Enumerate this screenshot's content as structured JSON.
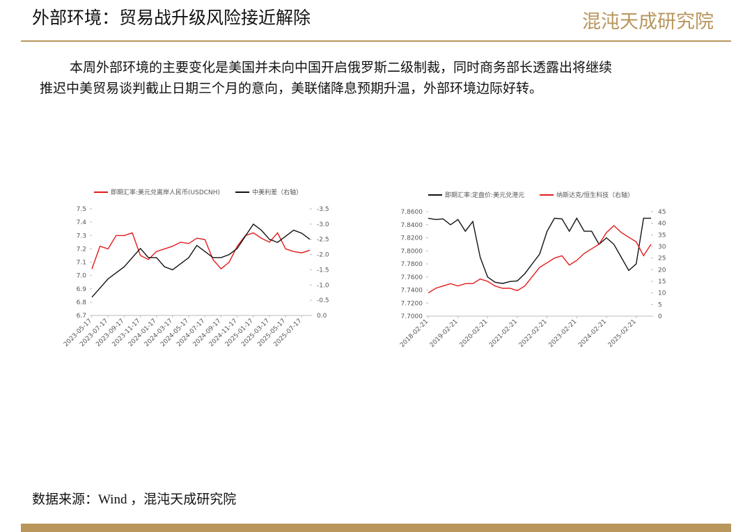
{
  "header": {
    "title": "外部环境：贸易战升级风险接近解除",
    "logo": "混沌天成研究院"
  },
  "paragraph": [
    "本周外部环境的主要变化是美国并未向中国开启俄罗斯二级制裁，同时商务部长透露出将继续",
    "推迟中美贸易谈判截止日期三个月的意向，美联储降息预期升温，外部环境边际好转。"
  ],
  "source": "数据来源：Wind ，混沌天成研究院",
  "chart_data": [
    {
      "type": "line",
      "categories": [
        "2023-05-17",
        null,
        "2023-07-17",
        null,
        "2023-09-17",
        null,
        "2023-11-17",
        null,
        "2024-01-17",
        null,
        "2024-03-17",
        null,
        "2024-05-17",
        null,
        "2024-07-17",
        null,
        "2024-09-17",
        null,
        "2024-11-17",
        null,
        "2025-01-17",
        null,
        "2025-03-17",
        null,
        "2025-05-17",
        null,
        "2025-07-17",
        null
      ],
      "series": [
        {
          "name": "即期汇率:美元兑离岸人民币(USDCNH)",
          "color": "#e31a1c",
          "values": [
            7.05,
            7.22,
            7.2,
            7.3,
            7.3,
            7.32,
            7.15,
            7.12,
            7.18,
            7.2,
            7.22,
            7.25,
            7.24,
            7.28,
            7.27,
            7.12,
            7.05,
            7.1,
            7.22,
            7.3,
            7.32,
            7.28,
            7.25,
            7.32,
            7.2,
            7.18,
            7.17,
            7.19
          ]
        },
        {
          "name": "中美利差（右轴）",
          "color": "#111111",
          "axis": "y2",
          "values": [
            -0.6,
            -0.9,
            -1.2,
            -1.4,
            -1.6,
            -1.9,
            -2.2,
            -1.9,
            -1.9,
            -1.6,
            -1.5,
            -1.7,
            -1.9,
            -2.3,
            -2.1,
            -1.9,
            -1.9,
            -2.0,
            -2.2,
            -2.6,
            -3.0,
            -2.8,
            -2.5,
            -2.4,
            -2.6,
            -2.8,
            -2.7,
            -2.5
          ]
        }
      ],
      "ylim": [
        6.7,
        7.5
      ],
      "yticks": [
        6.7,
        6.8,
        6.9,
        {
          "value": 7,
          "label": "7.0"
        },
        7.1,
        7.2,
        7.3,
        7.4,
        7.5
      ],
      "y2lim": [
        0,
        -3.5
      ],
      "y2ticks": [
        {
          "value": 0,
          "label": "0.0"
        },
        -0.5,
        {
          "value": -1,
          "label": "-1.0"
        },
        -1.5,
        {
          "value": -2,
          "label": "-2.0"
        },
        -2.5,
        {
          "value": -3,
          "label": "-3.0"
        },
        -3.5
      ]
    },
    {
      "type": "line",
      "categories": [
        "2018-02-21",
        null,
        null,
        null,
        "2019-02-21",
        null,
        null,
        null,
        "2020-02-21",
        null,
        null,
        null,
        "2021-02-21",
        null,
        null,
        null,
        "2022-02-21",
        null,
        null,
        null,
        "2023-02-21",
        null,
        null,
        null,
        "2024-02-21",
        null,
        null,
        null,
        "2025-02-21",
        null,
        null
      ],
      "series": [
        {
          "name": "即期汇率:定盘价:美元兑港元",
          "color": "#111111",
          "values": [
            7.85,
            7.848,
            7.849,
            7.84,
            7.848,
            7.83,
            7.845,
            7.79,
            7.76,
            7.752,
            7.75,
            7.753,
            7.754,
            7.765,
            7.78,
            7.795,
            7.83,
            7.85,
            7.849,
            7.83,
            7.85,
            7.83,
            7.83,
            7.81,
            7.82,
            7.81,
            7.79,
            7.77,
            7.78,
            7.85,
            7.85
          ]
        },
        {
          "name": "纳斯达克/恒生科技（右轴）",
          "color": "#e31a1c",
          "axis": "y2",
          "values": [
            10,
            12,
            13,
            14,
            13,
            14,
            14,
            16,
            15,
            13,
            12,
            12,
            11,
            13,
            17,
            21,
            23,
            25,
            26,
            22,
            24,
            27,
            29,
            31,
            36,
            39,
            36,
            34,
            32,
            26,
            31
          ]
        }
      ],
      "ylim": [
        7.7,
        7.86
      ],
      "yticks": [
        {
          "value": 7.7,
          "label": "7.7000"
        },
        {
          "value": 7.72,
          "label": "7.7200"
        },
        {
          "value": 7.74,
          "label": "7.7400"
        },
        {
          "value": 7.76,
          "label": "7.7600"
        },
        {
          "value": 7.78,
          "label": "7.7800"
        },
        {
          "value": 7.8,
          "label": "7.8000"
        },
        {
          "value": 7.82,
          "label": "7.8200"
        },
        {
          "value": 7.84,
          "label": "7.8400"
        },
        {
          "value": 7.86,
          "label": "7.8600"
        }
      ],
      "y2lim": [
        0,
        45
      ],
      "y2ticks": [
        0,
        5,
        10,
        15,
        20,
        25,
        30,
        35,
        40,
        45
      ]
    }
  ]
}
